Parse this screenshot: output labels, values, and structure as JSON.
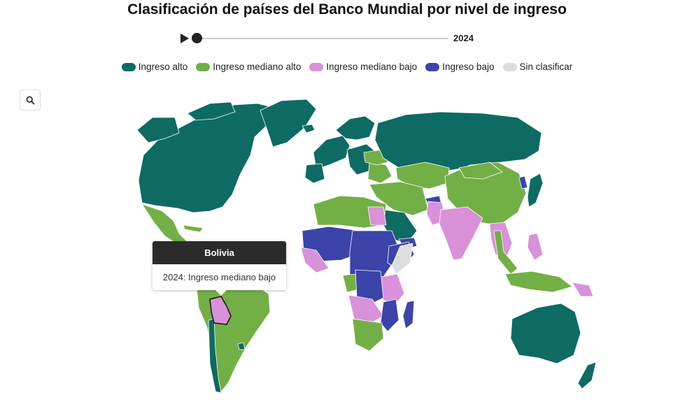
{
  "title": "Clasificación de países del Banco Mundial por nivel de ingreso",
  "timeline": {
    "year": "2024"
  },
  "colors": {
    "alto": "#0d6b63",
    "mediano_alto": "#72b045",
    "mediano_bajo": "#d991d9",
    "bajo": "#3b44a8",
    "sin": "#dddddd"
  },
  "legend": [
    {
      "label": "Ingreso alto",
      "color": "#0d6b63"
    },
    {
      "label": "Ingreso mediano alto",
      "color": "#72b045"
    },
    {
      "label": "Ingreso mediano bajo",
      "color": "#d991d9"
    },
    {
      "label": "Ingreso bajo",
      "color": "#3b44a8"
    },
    {
      "label": "Sin clasificar",
      "color": "#dddddd"
    }
  ],
  "zoom_icon": "search-icon",
  "tooltip": {
    "country": "Bolivia",
    "text": "2024: Ingreso mediano bajo"
  }
}
